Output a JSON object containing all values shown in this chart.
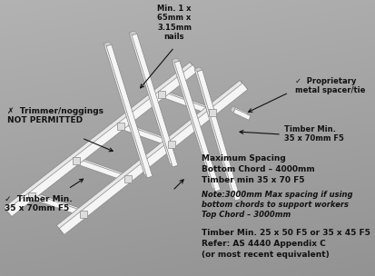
{
  "background_color": "#909090",
  "annotations": {
    "min_nails": "Min. 1 x\n65mm x\n3.15mm\nnails",
    "proprietary": "✓  Proprietary\nmetal spacer/tie",
    "trimmer": "✗  Trimmer/noggings\nNOT PERMITTED",
    "timber_top_right": "Timber Min.\n35 x 70mm F5",
    "timber_bottom_left": "✓  Timber Min.\n35 x 70mm F5",
    "max_spacing": "Maximum Spacing\nBottom Chord – 4000mm\nTimber min 35 x 70 F5",
    "note": "Note:3000mm Max spacing if using\nbottom chords to support workers\nTop Chord – 3000mm",
    "timber_min": "Timber Min. 25 x 50 F5 or 35 x 45 F5\nRefer: AS 4440 Appendix C\n(or most recent equivalent)"
  },
  "colors": {
    "beam_fill": "#f0f0f0",
    "beam_top": "#ffffff",
    "beam_side": "#aaaaaa",
    "beam_edge": "#666666",
    "text_color": "#111111",
    "bg_top": "#aaaaaa",
    "bg_bottom": "#707070"
  },
  "figsize": [
    4.14,
    3.04
  ],
  "dpi": 100
}
